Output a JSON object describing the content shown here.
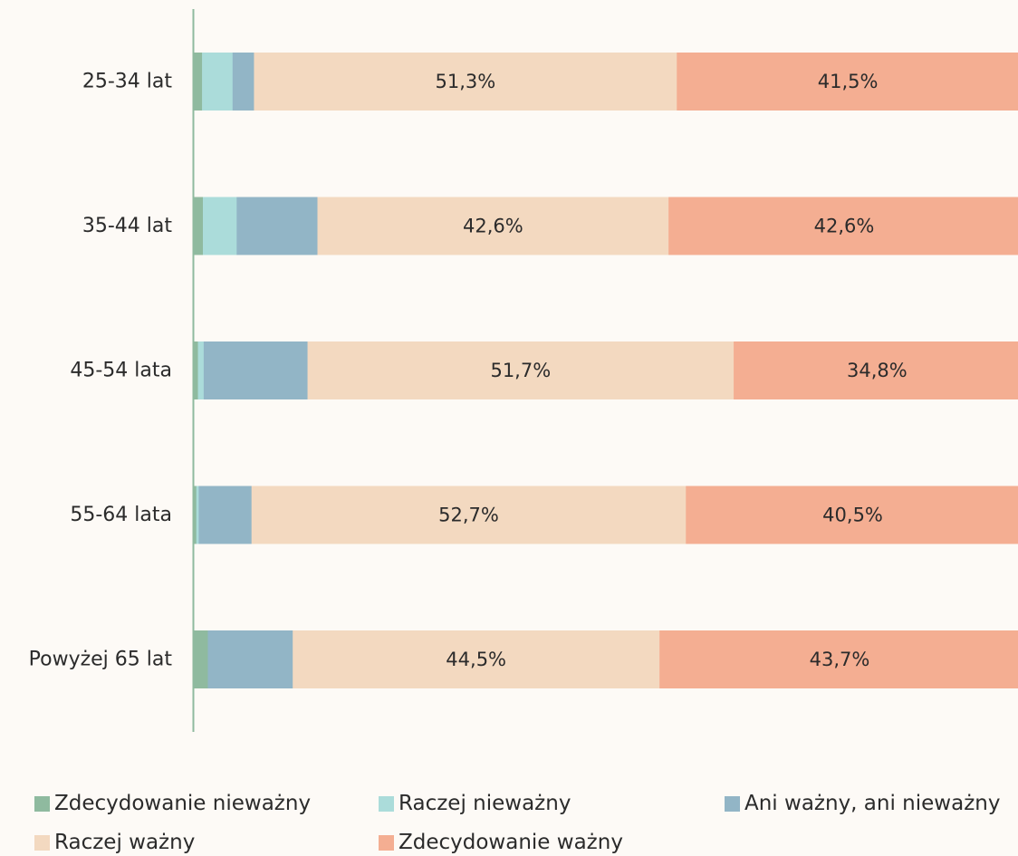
{
  "chart_data": {
    "type": "bar",
    "orientation": "horizontal",
    "stacked": true,
    "unit": "%",
    "categories": [
      "25-34 lat",
      "35-44 lat",
      "45-54 lata",
      "55-64 lata",
      "Powyżej 65 lat"
    ],
    "series": [
      {
        "name": "Zdecydowanie nieważny",
        "color": "#8fba9f",
        "values": [
          1.0,
          1.1,
          0.5,
          0.3,
          1.7
        ]
      },
      {
        "name": "Raczej nieważny",
        "color": "#abdcda",
        "values": [
          3.7,
          4.1,
          0.7,
          0.3,
          0.0
        ]
      },
      {
        "name": "Ani ważny, ani nieważny",
        "color": "#92b5c6",
        "values": [
          2.6,
          9.8,
          12.6,
          6.4,
          10.3
        ]
      },
      {
        "name": "Raczej ważny",
        "color": "#f3d9c0",
        "values": [
          51.3,
          42.6,
          51.7,
          52.7,
          44.5
        ]
      },
      {
        "name": "Zdecydowanie ważny",
        "color": "#f4ae92",
        "values": [
          41.5,
          42.6,
          34.8,
          40.5,
          43.7
        ]
      }
    ],
    "data_labels": [
      [
        "",
        "",
        "",
        "51,3%",
        "41,5%"
      ],
      [
        "",
        "",
        "",
        "42,6%",
        "42,6%"
      ],
      [
        "",
        "",
        "",
        "51,7%",
        "34,8%"
      ],
      [
        "",
        "",
        "",
        "52,7%",
        "40,5%"
      ],
      [
        "",
        "",
        "",
        "44,5%",
        "43,7%"
      ]
    ],
    "xlim": [
      0,
      100
    ],
    "grid": false,
    "legend_position": "bottom",
    "axis_color": "#8fba9f"
  }
}
